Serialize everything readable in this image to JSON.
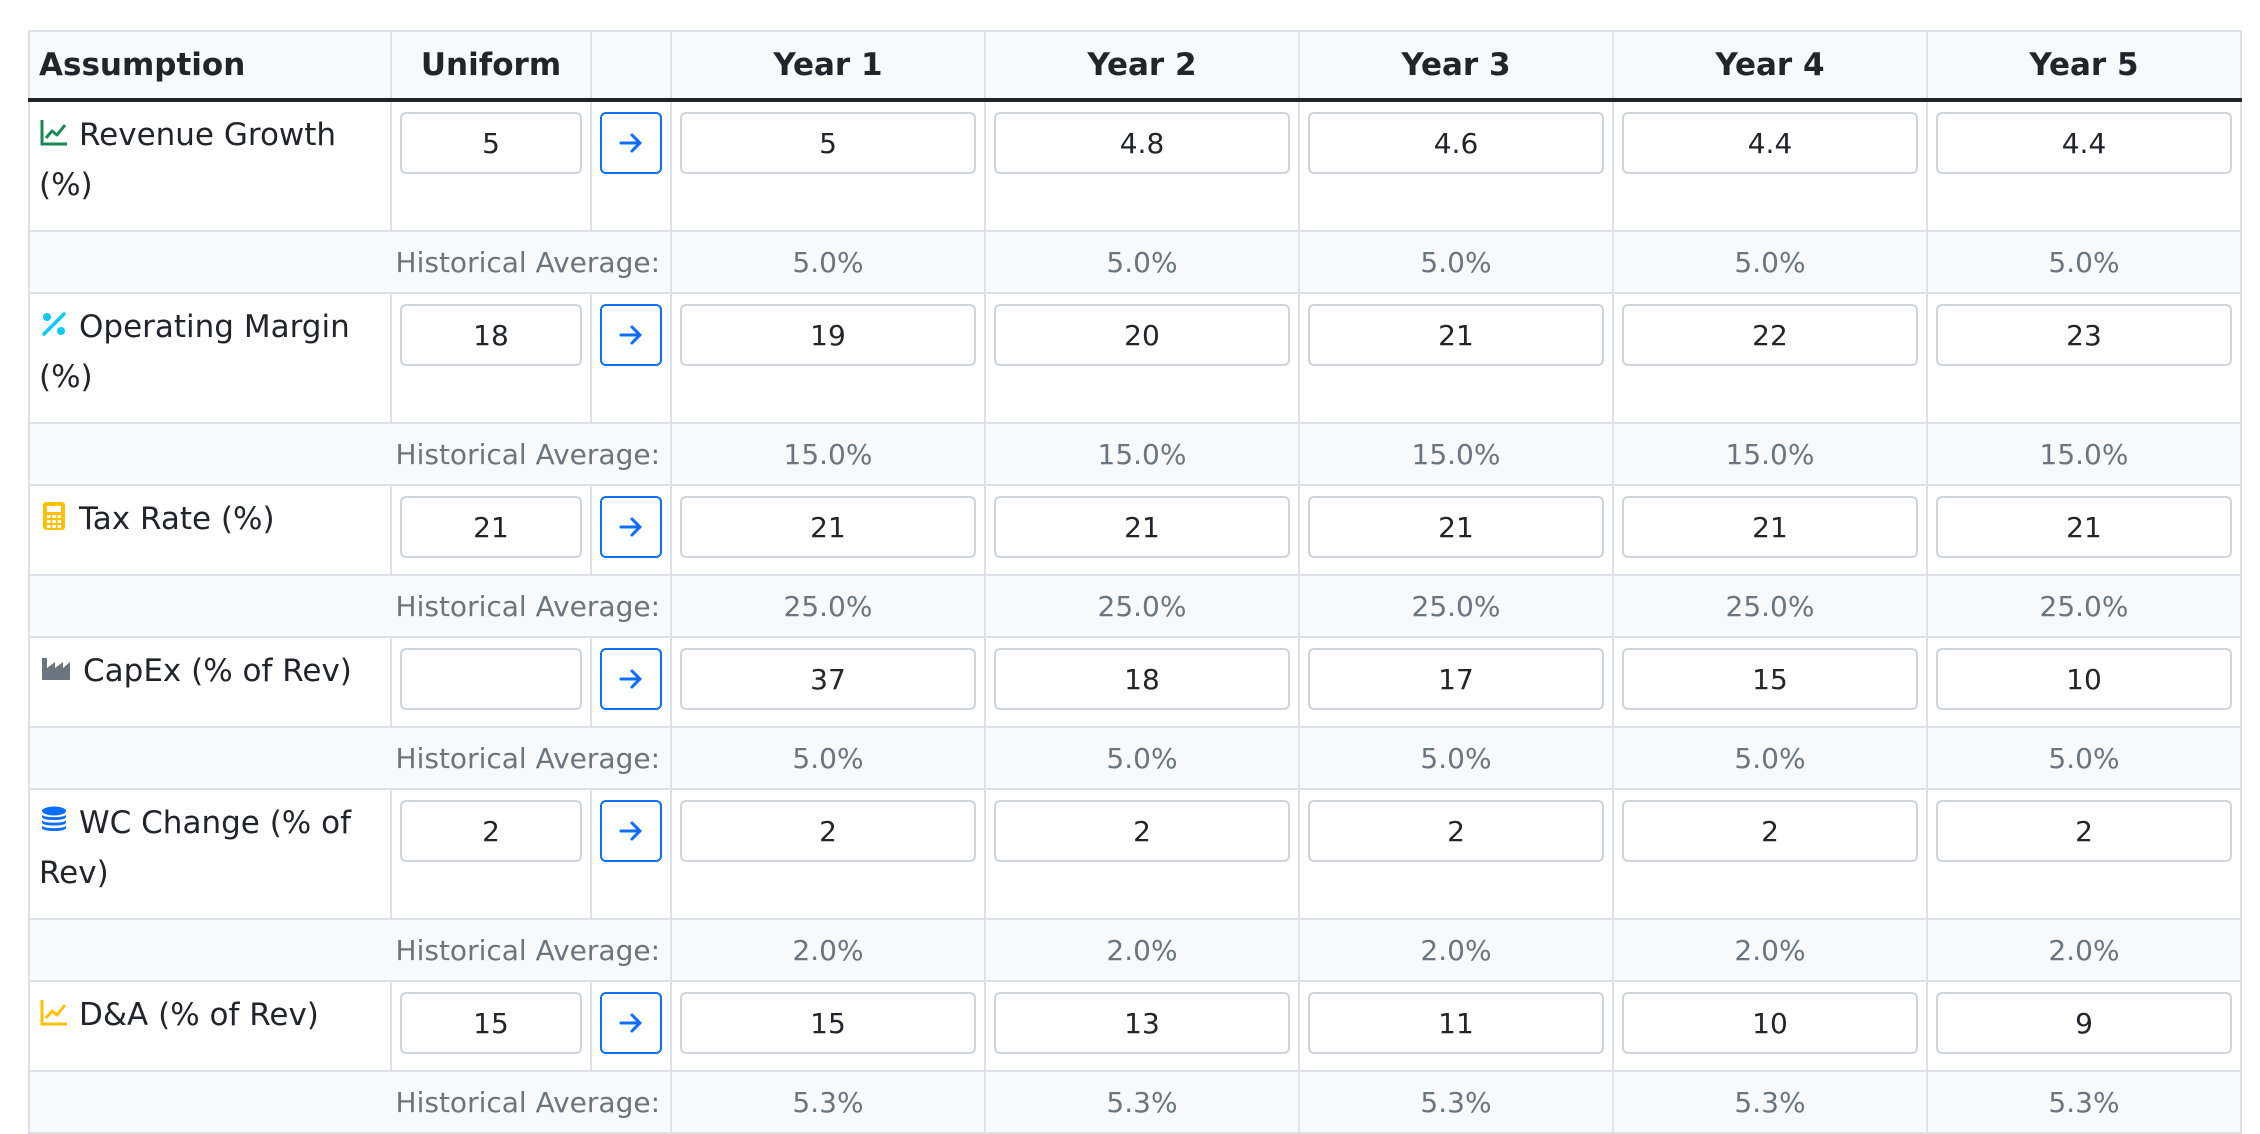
{
  "headers": {
    "assumption": "Assumption",
    "uniform": "Uniform",
    "years": [
      "Year 1",
      "Year 2",
      "Year 3",
      "Year 4",
      "Year 5"
    ]
  },
  "colors": {
    "revenue_icon": "#198754",
    "margin_icon": "#0dcaf0",
    "tax_icon": "#ffc107",
    "capex_icon": "#6c757d",
    "wc_icon": "#0d6efd",
    "da_icon": "#ffc107",
    "button_accent": "#0d6efd"
  },
  "historical_label": "Historical Average:",
  "rows": [
    {
      "key": "revenue_growth",
      "label": "Revenue Growth (%)",
      "icon": "chart-line-icon",
      "uniform": "5",
      "years": [
        "5",
        "4.8",
        "4.6",
        "4.4",
        "4.4"
      ],
      "historical": [
        "5.0%",
        "5.0%",
        "5.0%",
        "5.0%",
        "5.0%"
      ]
    },
    {
      "key": "operating_margin",
      "label": "Operating Margin (%)",
      "icon": "percent-icon",
      "uniform": "18",
      "years": [
        "19",
        "20",
        "21",
        "22",
        "23"
      ],
      "historical": [
        "15.0%",
        "15.0%",
        "15.0%",
        "15.0%",
        "15.0%"
      ]
    },
    {
      "key": "tax_rate",
      "label": "Tax Rate (%)",
      "icon": "calculator-icon",
      "uniform": "21",
      "years": [
        "21",
        "21",
        "21",
        "21",
        "21"
      ],
      "historical": [
        "25.0%",
        "25.0%",
        "25.0%",
        "25.0%",
        "25.0%"
      ]
    },
    {
      "key": "capex",
      "label": "CapEx (% of Rev)",
      "icon": "industry-icon",
      "uniform": "",
      "years": [
        "37",
        "18",
        "17",
        "15",
        "10"
      ],
      "historical": [
        "5.0%",
        "5.0%",
        "5.0%",
        "5.0%",
        "5.0%"
      ]
    },
    {
      "key": "wc_change",
      "label": "WC Change (% of Rev)",
      "icon": "coins-icon",
      "uniform": "2",
      "years": [
        "2",
        "2",
        "2",
        "2",
        "2"
      ],
      "historical": [
        "2.0%",
        "2.0%",
        "2.0%",
        "2.0%",
        "2.0%"
      ]
    },
    {
      "key": "da",
      "label": "D&A (% of Rev)",
      "icon": "chart-line-icon",
      "uniform": "15",
      "years": [
        "15",
        "13",
        "11",
        "10",
        "9"
      ],
      "historical": [
        "5.3%",
        "5.3%",
        "5.3%",
        "5.3%",
        "5.3%"
      ]
    }
  ]
}
